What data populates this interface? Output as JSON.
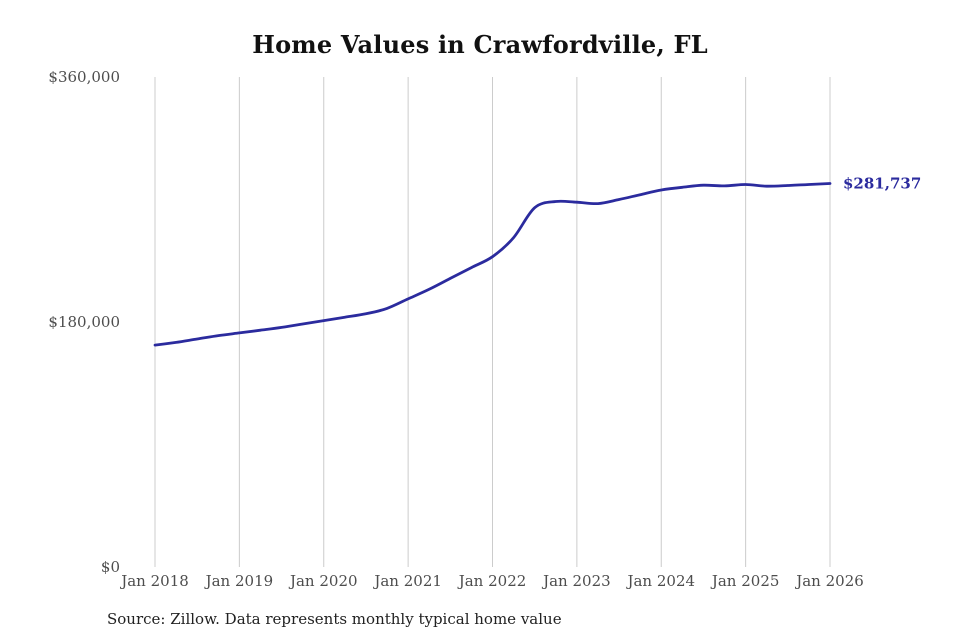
{
  "title": "Home Values in Crawfordville, FL",
  "source_note": "Source: Zillow. Data represents monthly typical home value",
  "colors": {
    "line": "#2b2b9e",
    "grid": "#cccccc",
    "tick_text": "#4d4d4d",
    "title_text": "#111111",
    "annotation_text": "#2b2b9e",
    "background": "#ffffff"
  },
  "chart_data": {
    "type": "line",
    "title": "Home Values in Crawfordville, FL",
    "xlabel": "",
    "ylabel": "",
    "ylim": [
      0,
      360000
    ],
    "xlim": [
      2018.0,
      2026.0
    ],
    "grid": "vertical-only",
    "legend": "none",
    "y_ticks": [
      {
        "value": 0,
        "label": "$0"
      },
      {
        "value": 180000,
        "label": "$180,000"
      },
      {
        "value": 360000,
        "label": "$360,000"
      }
    ],
    "x_ticks": [
      {
        "value": 2018,
        "label": "Jan 2018"
      },
      {
        "value": 2019,
        "label": "Jan 2019"
      },
      {
        "value": 2020,
        "label": "Jan 2020"
      },
      {
        "value": 2021,
        "label": "Jan 2021"
      },
      {
        "value": 2022,
        "label": "Jan 2022"
      },
      {
        "value": 2023,
        "label": "Jan 2023"
      },
      {
        "value": 2024,
        "label": "Jan 2024"
      },
      {
        "value": 2025,
        "label": "Jan 2025"
      },
      {
        "value": 2026,
        "label": "Jan 2026"
      }
    ],
    "series": [
      {
        "name": "Monthly typical home value",
        "color": "#2b2b9e",
        "x": [
          2018.0,
          2018.25,
          2018.5,
          2018.75,
          2019.0,
          2019.25,
          2019.5,
          2019.75,
          2020.0,
          2020.25,
          2020.5,
          2020.75,
          2021.0,
          2021.25,
          2021.5,
          2021.75,
          2022.0,
          2022.25,
          2022.5,
          2022.75,
          2023.0,
          2023.25,
          2023.5,
          2023.75,
          2024.0,
          2024.25,
          2024.5,
          2024.75,
          2025.0,
          2025.25,
          2025.5,
          2025.75,
          2026.0
        ],
        "values": [
          163000,
          165000,
          167500,
          170000,
          172000,
          174000,
          176000,
          178500,
          181000,
          183500,
          186000,
          190000,
          197000,
          204000,
          212000,
          220000,
          228000,
          242000,
          264000,
          268500,
          268000,
          267000,
          270000,
          273500,
          277000,
          279000,
          280500,
          280000,
          281000,
          279800,
          280300,
          281000,
          281737
        ]
      }
    ],
    "end_annotation": {
      "x": 2026.0,
      "value": 281737,
      "label": "$281,737"
    }
  }
}
